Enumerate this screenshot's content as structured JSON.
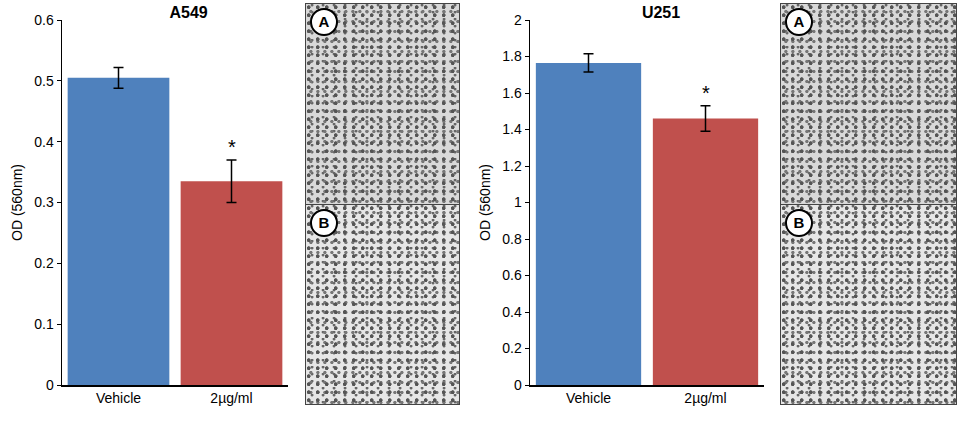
{
  "chart_data": [
    {
      "type": "bar",
      "title": "A549",
      "categories": [
        "Vehicle",
        "2µg/ml"
      ],
      "values": [
        0.505,
        0.335
      ],
      "errors": [
        0.017,
        0.035
      ],
      "colors": [
        "#4f81bd",
        "#c0504d"
      ],
      "y_label": "OD (560nm)",
      "ylim": [
        0,
        0.6
      ],
      "yticks": [
        0,
        0.1,
        0.2,
        0.3,
        0.4,
        0.5,
        0.6
      ],
      "grid": false,
      "annotations": [
        {
          "category": "2µg/ml",
          "text": "*"
        }
      ]
    },
    {
      "type": "bar",
      "title": "U251",
      "categories": [
        "Vehicle",
        "2µg/ml"
      ],
      "values": [
        1.765,
        1.46
      ],
      "errors": [
        0.05,
        0.07
      ],
      "colors": [
        "#4f81bd",
        "#c0504d"
      ],
      "y_label": "OD (560nm)",
      "ylim": [
        0,
        2
      ],
      "yticks": [
        0,
        0.2,
        0.4,
        0.6,
        0.8,
        1,
        1.2,
        1.4,
        1.6,
        1.8,
        2
      ],
      "grid": false,
      "annotations": [
        {
          "category": "2µg/ml",
          "text": "*"
        }
      ]
    }
  ],
  "micrographs": [
    {
      "panels": [
        "A",
        "B"
      ]
    },
    {
      "panels": [
        "A",
        "B"
      ]
    }
  ]
}
